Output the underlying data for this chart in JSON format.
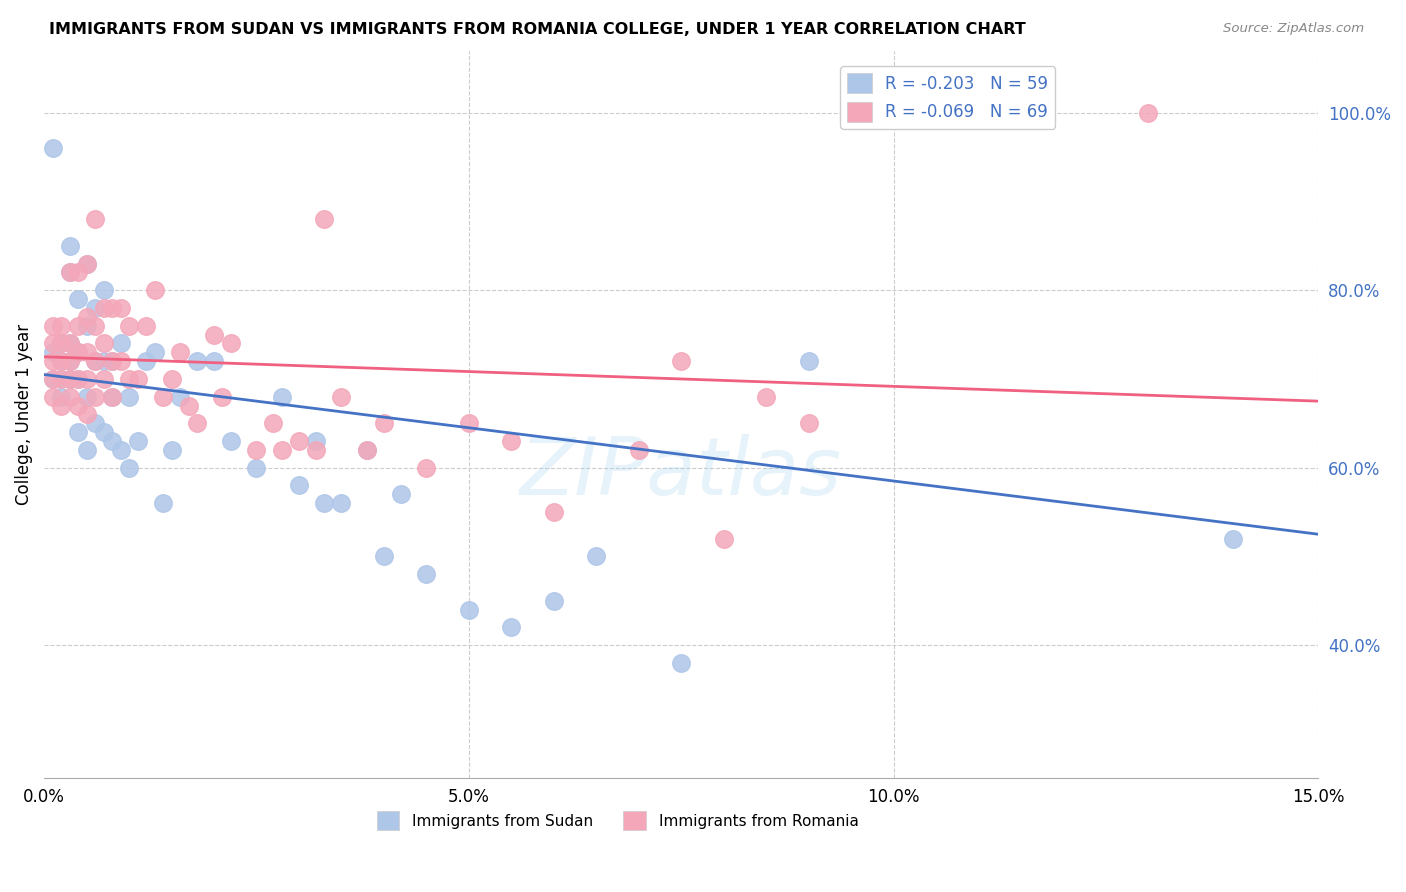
{
  "title": "IMMIGRANTS FROM SUDAN VS IMMIGRANTS FROM ROMANIA COLLEGE, UNDER 1 YEAR CORRELATION CHART",
  "source": "Source: ZipAtlas.com",
  "xlabel_ticks": [
    "0.0%",
    "5.0%",
    "10.0%",
    "15.0%"
  ],
  "xlabel_tick_vals": [
    0.0,
    0.05,
    0.1,
    0.15
  ],
  "ylabel": "College, Under 1 year",
  "ylabel_ticks": [
    "40.0%",
    "60.0%",
    "80.0%",
    "100.0%"
  ],
  "ylabel_tick_vals": [
    0.4,
    0.6,
    0.8,
    1.0
  ],
  "xmin": 0.0,
  "xmax": 0.15,
  "ymin": 0.25,
  "ymax": 1.07,
  "sudan_color": "#aec6e8",
  "romania_color": "#f4a7b9",
  "sudan_line_color": "#4472c4",
  "romania_line_color": "#f06080",
  "watermark": "ZIPatlas",
  "legend_sudan_label": "R = -0.203   N = 59",
  "legend_romania_label": "R = -0.069   N = 69",
  "legend_bottom_sudan": "Immigrants from Sudan",
  "legend_bottom_romania": "Immigrants from Romania",
  "sudan_x": [
    0.001,
    0.001,
    0.001,
    0.002,
    0.002,
    0.002,
    0.002,
    0.003,
    0.003,
    0.003,
    0.003,
    0.003,
    0.004,
    0.004,
    0.004,
    0.004,
    0.005,
    0.005,
    0.005,
    0.005,
    0.006,
    0.006,
    0.006,
    0.007,
    0.007,
    0.007,
    0.008,
    0.008,
    0.008,
    0.009,
    0.009,
    0.01,
    0.01,
    0.011,
    0.012,
    0.013,
    0.014,
    0.015,
    0.016,
    0.018,
    0.02,
    0.022,
    0.025,
    0.028,
    0.03,
    0.032,
    0.033,
    0.035,
    0.038,
    0.04,
    0.042,
    0.045,
    0.05,
    0.055,
    0.06,
    0.065,
    0.075,
    0.09,
    0.14
  ],
  "sudan_y": [
    0.7,
    0.73,
    0.96,
    0.68,
    0.7,
    0.72,
    0.74,
    0.7,
    0.72,
    0.74,
    0.82,
    0.85,
    0.64,
    0.7,
    0.73,
    0.79,
    0.62,
    0.68,
    0.76,
    0.83,
    0.65,
    0.72,
    0.78,
    0.64,
    0.72,
    0.8,
    0.63,
    0.68,
    0.72,
    0.62,
    0.74,
    0.6,
    0.68,
    0.63,
    0.72,
    0.73,
    0.56,
    0.62,
    0.68,
    0.72,
    0.72,
    0.63,
    0.6,
    0.68,
    0.58,
    0.63,
    0.56,
    0.56,
    0.62,
    0.5,
    0.57,
    0.48,
    0.44,
    0.42,
    0.45,
    0.5,
    0.38,
    0.72,
    0.52
  ],
  "romania_x": [
    0.001,
    0.001,
    0.001,
    0.001,
    0.001,
    0.002,
    0.002,
    0.002,
    0.002,
    0.002,
    0.003,
    0.003,
    0.003,
    0.003,
    0.003,
    0.004,
    0.004,
    0.004,
    0.004,
    0.004,
    0.005,
    0.005,
    0.005,
    0.005,
    0.005,
    0.006,
    0.006,
    0.006,
    0.006,
    0.007,
    0.007,
    0.007,
    0.008,
    0.008,
    0.008,
    0.009,
    0.009,
    0.01,
    0.01,
    0.011,
    0.012,
    0.013,
    0.014,
    0.015,
    0.016,
    0.017,
    0.018,
    0.02,
    0.021,
    0.022,
    0.025,
    0.027,
    0.028,
    0.03,
    0.032,
    0.033,
    0.035,
    0.038,
    0.04,
    0.045,
    0.05,
    0.055,
    0.06,
    0.07,
    0.075,
    0.08,
    0.085,
    0.09,
    0.13
  ],
  "romania_y": [
    0.68,
    0.7,
    0.72,
    0.74,
    0.76,
    0.67,
    0.7,
    0.72,
    0.74,
    0.76,
    0.68,
    0.7,
    0.72,
    0.74,
    0.82,
    0.67,
    0.7,
    0.73,
    0.76,
    0.82,
    0.66,
    0.7,
    0.73,
    0.77,
    0.83,
    0.68,
    0.72,
    0.76,
    0.88,
    0.7,
    0.74,
    0.78,
    0.68,
    0.72,
    0.78,
    0.72,
    0.78,
    0.7,
    0.76,
    0.7,
    0.76,
    0.8,
    0.68,
    0.7,
    0.73,
    0.67,
    0.65,
    0.75,
    0.68,
    0.74,
    0.62,
    0.65,
    0.62,
    0.63,
    0.62,
    0.88,
    0.68,
    0.62,
    0.65,
    0.6,
    0.65,
    0.63,
    0.55,
    0.62,
    0.72,
    0.52,
    0.68,
    0.65,
    1.0
  ],
  "sudan_line_x0": 0.0,
  "sudan_line_y0": 0.705,
  "sudan_line_x1": 0.15,
  "sudan_line_y1": 0.525,
  "romania_line_x0": 0.0,
  "romania_line_y0": 0.725,
  "romania_line_x1": 0.15,
  "romania_line_y1": 0.675
}
